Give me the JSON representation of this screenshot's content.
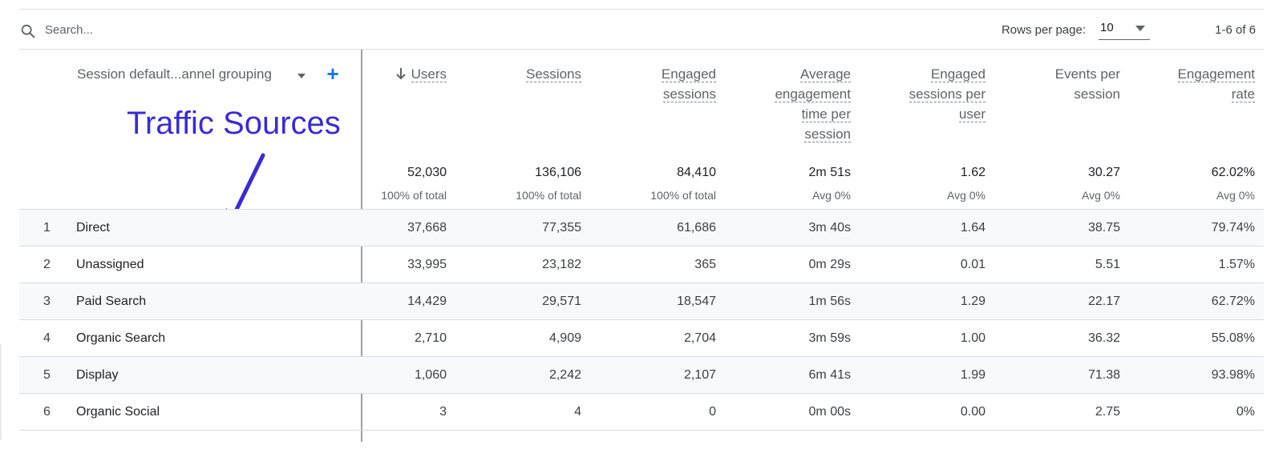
{
  "toolbar": {
    "search_placeholder": "Search...",
    "rows_per_page_label": "Rows per page:",
    "rows_per_page_value": "10",
    "pagination": "1-6 of 6"
  },
  "dimension": {
    "label": "Session default...annel grouping",
    "add_symbol": "+"
  },
  "annotation": {
    "text": "Traffic Sources",
    "color": "#3a2bd6"
  },
  "columns": [
    {
      "lines": [
        "Users"
      ],
      "sorted": true
    },
    {
      "lines": [
        "Sessions"
      ],
      "sorted": false
    },
    {
      "lines": [
        "Engaged",
        "sessions"
      ],
      "sorted": false
    },
    {
      "lines": [
        "Average",
        "engagement",
        "time per",
        "session"
      ],
      "sorted": false
    },
    {
      "lines": [
        "Engaged",
        "sessions per",
        "user"
      ],
      "sorted": false
    },
    {
      "lines": [
        "Events per",
        "session"
      ],
      "sorted": false,
      "plain": true
    },
    {
      "lines": [
        "Engagement",
        "rate"
      ],
      "sorted": false
    }
  ],
  "totals": [
    {
      "value": "52,030",
      "sub": "100% of total"
    },
    {
      "value": "136,106",
      "sub": "100% of total"
    },
    {
      "value": "84,410",
      "sub": "100% of total"
    },
    {
      "value": "2m 51s",
      "sub": "Avg 0%"
    },
    {
      "value": "1.62",
      "sub": "Avg 0%"
    },
    {
      "value": "30.27",
      "sub": "Avg 0%"
    },
    {
      "value": "62.02%",
      "sub": "Avg 0%"
    }
  ],
  "rows": [
    {
      "num": "1",
      "name": "Direct",
      "values": [
        "37,668",
        "77,355",
        "61,686",
        "3m 40s",
        "1.64",
        "38.75",
        "79.74%"
      ]
    },
    {
      "num": "2",
      "name": "Unassigned",
      "values": [
        "33,995",
        "23,182",
        "365",
        "0m 29s",
        "0.01",
        "5.51",
        "1.57%"
      ]
    },
    {
      "num": "3",
      "name": "Paid Search",
      "values": [
        "14,429",
        "29,571",
        "18,547",
        "1m 56s",
        "1.29",
        "22.17",
        "62.72%"
      ]
    },
    {
      "num": "4",
      "name": "Organic Search",
      "values": [
        "2,710",
        "4,909",
        "2,704",
        "3m 59s",
        "1.00",
        "36.32",
        "55.08%"
      ]
    },
    {
      "num": "5",
      "name": "Display",
      "values": [
        "1,060",
        "2,242",
        "2,107",
        "6m 41s",
        "1.99",
        "71.38",
        "93.98%"
      ]
    },
    {
      "num": "6",
      "name": "Organic Social",
      "values": [
        "3",
        "4",
        "0",
        "0m 00s",
        "0.00",
        "2.75",
        "0%"
      ]
    }
  ]
}
